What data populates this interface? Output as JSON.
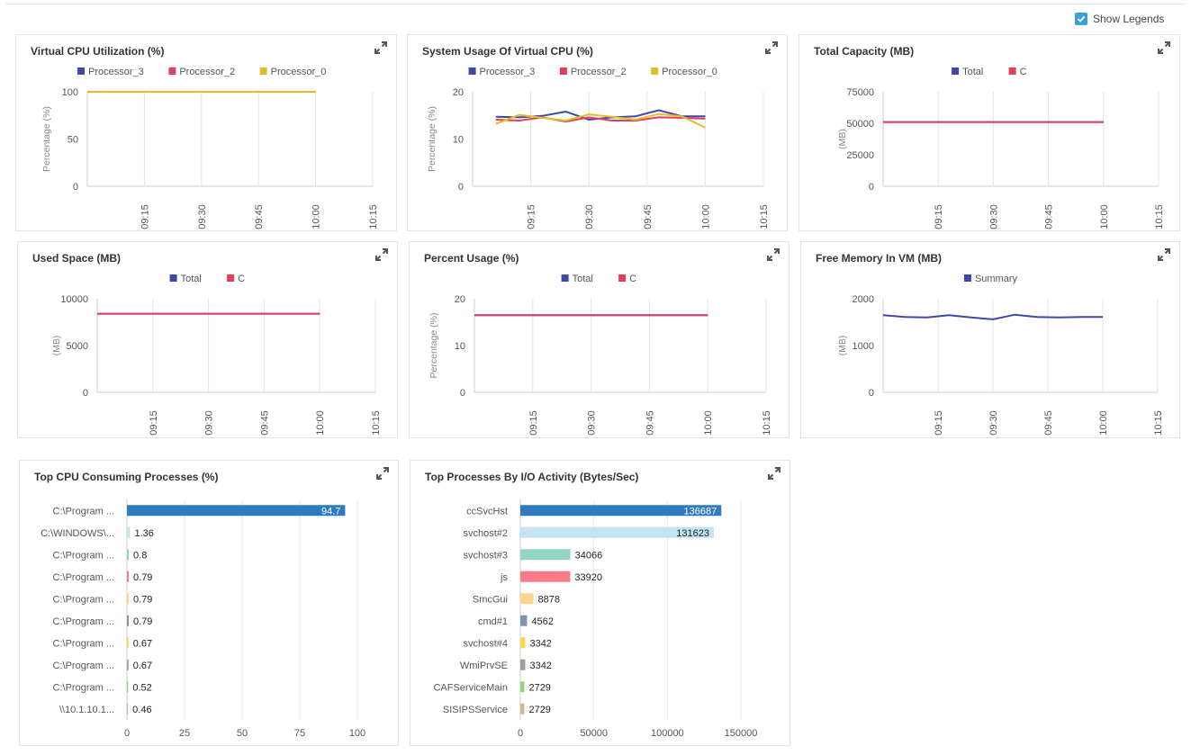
{
  "show_legends": {
    "label": "Show Legends",
    "checked": true
  },
  "icons": {
    "expand": "expand-icon",
    "checkbox": "checkbox-icon"
  },
  "panels": [
    {
      "id": "virtual-cpu-utilization",
      "title": "Virtual CPU Utilization (%)",
      "chart_data": {
        "type": "line",
        "ylabel": "Percentage (%)",
        "ylim": [
          0,
          100
        ],
        "yticks": [
          "0",
          "50",
          "100"
        ],
        "xticks": [
          "09:15",
          "09:30",
          "09:45",
          "10:00",
          "10:15"
        ],
        "series": [
          {
            "name": "Processor_3",
            "color": "#3f48a8",
            "points": [
              [
                9.0,
                100
              ],
              [
                10.0,
                100
              ]
            ]
          },
          {
            "name": "Processor_2",
            "color": "#e0405a",
            "points": [
              [
                9.0,
                100
              ],
              [
                10.0,
                100
              ]
            ]
          },
          {
            "name": "Processor_0",
            "color": "#e2bd2b",
            "points": [
              [
                9.0,
                100
              ],
              [
                10.0,
                100
              ]
            ]
          }
        ]
      }
    },
    {
      "id": "system-usage-virtual-cpu",
      "title": "System Usage Of Virtual CPU (%)",
      "chart_data": {
        "type": "line",
        "ylabel": "Percentage (%)",
        "ylim": [
          0,
          20
        ],
        "yticks": [
          "0",
          "10",
          "20"
        ],
        "xticks": [
          "09:15",
          "09:30",
          "09:45",
          "10:00",
          "10:15"
        ],
        "series": [
          {
            "name": "Processor_3",
            "color": "#3f48a8",
            "points": [
              [
                9.1,
                14.7
              ],
              [
                9.2,
                14.6
              ],
              [
                9.3,
                14.9
              ],
              [
                9.4,
                15.8
              ],
              [
                9.5,
                14.1
              ],
              [
                9.6,
                14.6
              ],
              [
                9.7,
                14.8
              ],
              [
                9.8,
                16.1
              ],
              [
                9.9,
                14.8
              ],
              [
                10.0,
                14.8
              ]
            ]
          },
          {
            "name": "Processor_2",
            "color": "#e0405a",
            "points": [
              [
                9.1,
                14.1
              ],
              [
                9.2,
                13.9
              ],
              [
                9.3,
                14.6
              ],
              [
                9.4,
                13.7
              ],
              [
                9.5,
                14.6
              ],
              [
                9.6,
                13.9
              ],
              [
                9.7,
                13.9
              ],
              [
                9.8,
                14.6
              ],
              [
                9.9,
                14.5
              ],
              [
                10.0,
                14.3
              ]
            ]
          },
          {
            "name": "Processor_0",
            "color": "#e2bd2b",
            "points": [
              [
                9.1,
                13.2
              ],
              [
                9.2,
                15.1
              ],
              [
                9.3,
                14.5
              ],
              [
                9.4,
                13.9
              ],
              [
                9.5,
                15.2
              ],
              [
                9.6,
                14.7
              ],
              [
                9.7,
                14.1
              ],
              [
                9.8,
                15.3
              ],
              [
                9.9,
                14.8
              ],
              [
                10.0,
                12.4
              ]
            ]
          }
        ]
      }
    },
    {
      "id": "total-capacity",
      "title": "Total Capacity (MB)",
      "chart_data": {
        "type": "line",
        "ylabel": "(MB)",
        "ylim": [
          0,
          75000
        ],
        "yticks": [
          "0",
          "25000",
          "50000",
          "75000"
        ],
        "xticks": [
          "09:15",
          "09:30",
          "09:45",
          "10:00",
          "10:15"
        ],
        "series": [
          {
            "name": "Total",
            "color": "#3f48a8",
            "points": [
              [
                9.0,
                51000
              ],
              [
                10.0,
                51000
              ]
            ]
          },
          {
            "name": "C",
            "color": "#e0405a",
            "points": [
              [
                9.0,
                51000
              ],
              [
                10.0,
                51000
              ]
            ]
          }
        ]
      }
    },
    {
      "id": "used-space",
      "title": "Used Space (MB)",
      "chart_data": {
        "type": "line",
        "ylabel": "(MB)",
        "ylim": [
          0,
          10000
        ],
        "yticks": [
          "0",
          "5000",
          "10000"
        ],
        "xticks": [
          "09:15",
          "09:30",
          "09:45",
          "10:00",
          "10:15"
        ],
        "series": [
          {
            "name": "Total",
            "color": "#3f48a8",
            "points": [
              [
                9.0,
                8400
              ],
              [
                10.0,
                8400
              ]
            ]
          },
          {
            "name": "C",
            "color": "#e0405a",
            "points": [
              [
                9.0,
                8400
              ],
              [
                10.0,
                8400
              ]
            ]
          }
        ]
      }
    },
    {
      "id": "percent-usage",
      "title": "Percent Usage (%)",
      "chart_data": {
        "type": "line",
        "ylabel": "Percentage (%)",
        "ylim": [
          0,
          20
        ],
        "yticks": [
          "0",
          "10",
          "20"
        ],
        "xticks": [
          "09:15",
          "09:30",
          "09:45",
          "10:00",
          "10:15"
        ],
        "series": [
          {
            "name": "Total",
            "color": "#3f48a8",
            "points": [
              [
                9.0,
                16.5
              ],
              [
                10.0,
                16.5
              ]
            ]
          },
          {
            "name": "C",
            "color": "#e0405a",
            "points": [
              [
                9.0,
                16.5
              ],
              [
                10.0,
                16.5
              ]
            ]
          }
        ]
      }
    },
    {
      "id": "free-memory-in-vm",
      "title": "Free Memory In VM (MB)",
      "chart_data": {
        "type": "line",
        "ylabel": "(MB)",
        "ylim": [
          0,
          2000
        ],
        "yticks": [
          "0",
          "1000",
          "2000"
        ],
        "xticks": [
          "09:15",
          "09:30",
          "09:45",
          "10:00",
          "10:15"
        ],
        "series": [
          {
            "name": "Summary",
            "color": "#3f48a8",
            "points": [
              [
                9.0,
                1650
              ],
              [
                9.1,
                1610
              ],
              [
                9.2,
                1600
              ],
              [
                9.3,
                1650
              ],
              [
                9.4,
                1600
              ],
              [
                9.5,
                1560
              ],
              [
                9.6,
                1660
              ],
              [
                9.7,
                1610
              ],
              [
                9.8,
                1600
              ],
              [
                9.9,
                1610
              ],
              [
                10.0,
                1610
              ]
            ]
          }
        ]
      }
    },
    {
      "id": "top-cpu-processes",
      "title": "Top CPU Consuming Processes (%)",
      "chart_data": {
        "type": "bar",
        "orientation": "horizontal",
        "xlim": [
          0,
          100
        ],
        "xticks": [
          "0",
          "25",
          "50",
          "75",
          "100"
        ],
        "categories": [
          "C:\\Program ...",
          "C:\\WINDOWS\\...",
          "C:\\Program ...",
          "C:\\Program ...",
          "C:\\Program ...",
          "C:\\Program ...",
          "C:\\Program ...",
          "C:\\Program ...",
          "C:\\Program ...",
          "\\\\10.1.10.1..."
        ],
        "values": [
          94.7,
          1.36,
          0.8,
          0.79,
          0.79,
          0.79,
          0.67,
          0.67,
          0.52,
          0.46
        ],
        "value_labels": [
          "94.7",
          "1.36",
          "0.8",
          "0.79",
          "0.79",
          "0.79",
          "0.67",
          "0.67",
          "0.52",
          "0.46"
        ],
        "colors": [
          "#2e7bbf",
          "#c2e3ef",
          "#94d6c6",
          "#f97b87",
          "#fdd38d",
          "#7d95ab",
          "#f8d74a",
          "#9aa38f",
          "#8ed67b",
          "#d2b394"
        ]
      }
    },
    {
      "id": "top-io-processes",
      "title": "Top Processes By I/O Activity (Bytes/Sec)",
      "chart_data": {
        "type": "bar",
        "orientation": "horizontal",
        "xlim": [
          0,
          150000
        ],
        "xticks": [
          "0",
          "50000",
          "100000",
          "150000"
        ],
        "categories": [
          "ccSvcHst",
          "svchost#2",
          "svchost#3",
          "js",
          "SmcGui",
          "cmd#1",
          "svchost#4",
          "WmiPrvSE",
          "CAFServiceMain",
          "SISIPSService"
        ],
        "values": [
          136687,
          131623,
          34066,
          33920,
          8878,
          4562,
          3342,
          3342,
          2729,
          2729
        ],
        "value_labels": [
          "136687",
          "131623",
          "34066",
          "33920",
          "8878",
          "4562",
          "3342",
          "3342",
          "2729",
          "2729"
        ],
        "colors": [
          "#2e7bbf",
          "#c2e3ef",
          "#94d6c6",
          "#f97b87",
          "#fdd38d",
          "#7d95ab",
          "#f8d74a",
          "#9aa38f",
          "#8ed67b",
          "#d2b394"
        ]
      }
    }
  ]
}
